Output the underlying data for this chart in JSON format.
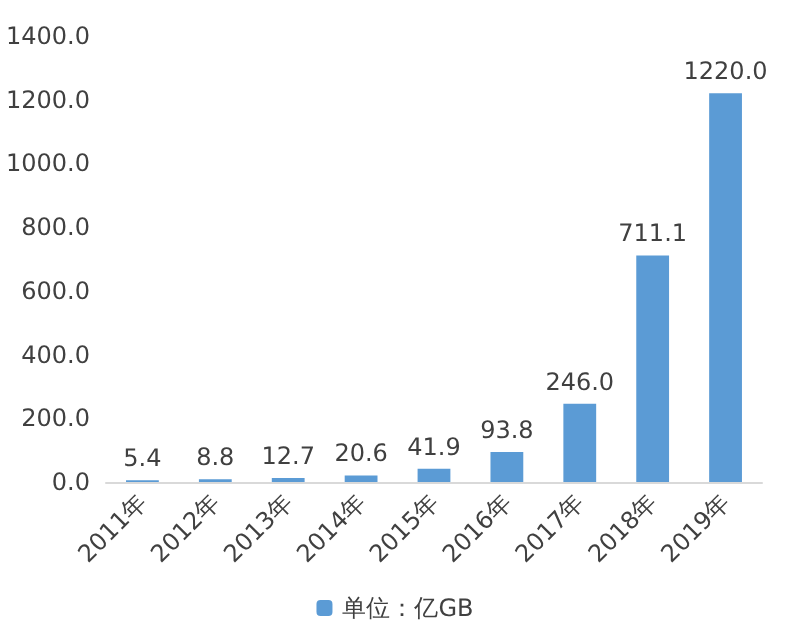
{
  "chart_data": {
    "type": "bar",
    "categories": [
      "2011年",
      "2012年",
      "2013年",
      "2014年",
      "2015年",
      "2016年",
      "2017年",
      "2018年",
      "2019年"
    ],
    "series": [
      {
        "name": "单位：亿GB",
        "color": "#5b9bd5",
        "values": [
          5.4,
          8.8,
          12.7,
          20.6,
          41.9,
          93.8,
          246.0,
          711.1,
          1220.0
        ],
        "value_labels": [
          "5.4",
          "8.8",
          "12.7",
          "20.6",
          "41.9",
          "93.8",
          "246.0",
          "711.1",
          "1220.0"
        ]
      }
    ],
    "ylim": [
      0,
      1400
    ],
    "yticks": [
      {
        "value": 0,
        "label": "0.0"
      },
      {
        "value": 200,
        "label": "200.0"
      },
      {
        "value": 400,
        "label": "400.0"
      },
      {
        "value": 600,
        "label": "600.0"
      },
      {
        "value": 800,
        "label": "800.0"
      },
      {
        "value": 1000,
        "label": "1000.0"
      },
      {
        "value": 1200,
        "label": "1200.0"
      },
      {
        "value": 1400,
        "label": "1400.0"
      }
    ],
    "grid": false,
    "legend": "bottom"
  }
}
